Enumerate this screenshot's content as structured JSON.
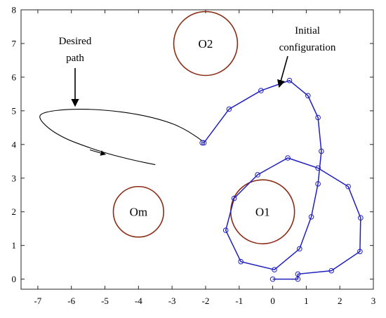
{
  "chart_data": {
    "type": "line",
    "title": "",
    "xlabel": "",
    "ylabel": "",
    "xlim": [
      -7.5,
      3
    ],
    "ylim": [
      -0.3,
      8
    ],
    "xticks": [
      -7,
      -6,
      -5,
      -4,
      -3,
      -2,
      -1,
      0,
      1,
      2,
      3
    ],
    "yticks": [
      0,
      1,
      2,
      3,
      4,
      5,
      6,
      7,
      8
    ],
    "grid": false,
    "colors": {
      "chain": "#1f1fbf",
      "obstacle": "#8b2d16",
      "path": "#000000"
    },
    "obstacles": [
      {
        "label": "O1",
        "center": [
          -0.3,
          2.0
        ],
        "r": 0.95
      },
      {
        "label": "O2",
        "center": [
          -2.0,
          7.0
        ],
        "r": 0.95
      },
      {
        "label": "Om",
        "center": [
          -4.0,
          2.0
        ],
        "r": 0.75
      }
    ],
    "series": [
      {
        "role": "initial-configuration",
        "x": [
          0.0,
          0.75,
          0.75,
          1.75,
          2.6,
          2.62,
          2.25,
          1.35,
          0.45,
          -0.45,
          -1.15,
          -1.4,
          -0.95,
          0.05,
          0.8,
          1.15,
          1.35,
          1.45,
          1.35,
          1.05,
          0.5,
          -0.35,
          -1.3,
          -2.05,
          -2.1
        ],
        "y": [
          0.0,
          0.0,
          0.15,
          0.25,
          0.82,
          1.82,
          2.75,
          3.3,
          3.6,
          3.1,
          2.4,
          1.45,
          0.52,
          0.28,
          0.9,
          1.85,
          2.83,
          3.8,
          4.8,
          5.45,
          5.9,
          5.6,
          5.05,
          4.05,
          4.05
        ],
        "markers": true
      },
      {
        "role": "desired-path",
        "points": [
          [
            -3.5,
            3.4
          ],
          [
            -4.1,
            3.52
          ],
          [
            -4.9,
            3.72
          ],
          [
            -5.6,
            3.95
          ],
          [
            -6.2,
            4.18
          ],
          [
            -6.7,
            4.48
          ],
          [
            -7.0,
            4.82
          ],
          [
            -6.8,
            4.97
          ],
          [
            -6.0,
            5.06
          ],
          [
            -5.0,
            5.03
          ],
          [
            -4.0,
            4.9
          ],
          [
            -3.2,
            4.7
          ],
          [
            -2.7,
            4.5
          ],
          [
            -2.3,
            4.25
          ],
          [
            -2.12,
            4.12
          ]
        ],
        "markers": false
      }
    ],
    "annotations": {
      "desired_path": {
        "line1": "Desired",
        "line2": "path"
      },
      "initial_configuration": {
        "line1": "Initial",
        "line2": "configuration"
      }
    }
  }
}
